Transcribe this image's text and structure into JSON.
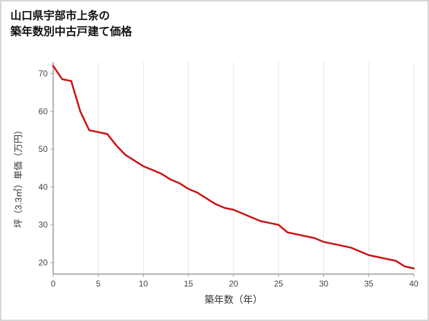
{
  "page": {
    "title_line1": "山口県宇部市上条の",
    "title_line2": "築年数別中古戸建て価格"
  },
  "chart_data": {
    "type": "line",
    "title": "山口県宇部市上条の築年数別中古戸建て価格",
    "xlabel": "築年数（年）",
    "ylabel": "坪（3.3㎡）単価（万円）",
    "xlim": [
      0,
      40
    ],
    "ylim": [
      17,
      73
    ],
    "x_ticks": [
      0,
      5,
      10,
      15,
      20,
      25,
      30,
      35,
      40
    ],
    "y_ticks": [
      20,
      30,
      40,
      50,
      60,
      70
    ],
    "grid": "vertical-only",
    "legend": "none",
    "line_color": "#c91414",
    "series": [
      {
        "color": "#c91414",
        "x": [
          0,
          1,
          2,
          3,
          4,
          5,
          6,
          7,
          8,
          9,
          10,
          11,
          12,
          13,
          14,
          15,
          16,
          17,
          18,
          19,
          20,
          21,
          22,
          23,
          24,
          25,
          26,
          27,
          28,
          29,
          30,
          31,
          32,
          33,
          34,
          35,
          36,
          37,
          38,
          39,
          40
        ],
        "y": [
          72,
          68.5,
          68,
          60,
          55,
          54.5,
          54,
          51,
          48.5,
          47,
          45.5,
          44.5,
          43.5,
          42,
          41,
          39.5,
          38.5,
          37,
          35.5,
          34.5,
          34,
          33,
          32,
          31,
          30.5,
          30,
          28,
          27.5,
          27,
          26.5,
          25.5,
          25,
          24.5,
          24,
          23,
          22,
          21.5,
          21,
          20.5,
          19,
          18.5
        ]
      }
    ]
  }
}
